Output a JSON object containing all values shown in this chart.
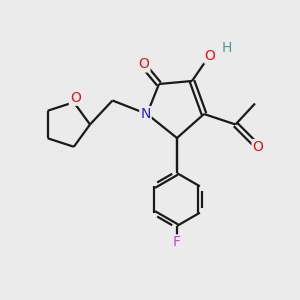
{
  "bg_color": "#ebebeb",
  "bond_color": "#1a1a1a",
  "atom_colors": {
    "O": "#ee1111",
    "N": "#2222cc",
    "F": "#cc44cc",
    "H": "#4a9a9a",
    "C": "#1a1a1a"
  },
  "bond_width": 1.6,
  "dbo": 0.09,
  "font_size": 10
}
